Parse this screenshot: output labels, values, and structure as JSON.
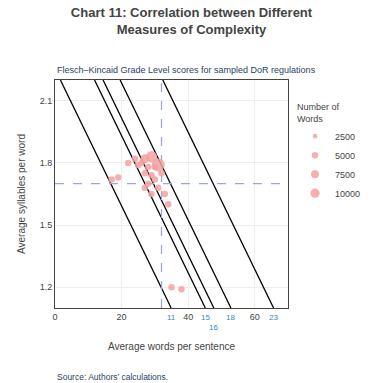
{
  "chart_data": {
    "type": "scatter",
    "title": "Chart 11: Correlation between Different\nMeasures of Complexity",
    "subtitle": "Flesch–Kincaid Grade Level scores for sampled DoR regulations",
    "source": "Source: Authors’ calculations.",
    "xlabel": "Average words per sentence",
    "ylabel": "Average syllables per word",
    "xlim": [
      0,
      70
    ],
    "ylim": [
      1.1,
      2.2
    ],
    "xticks": [
      0,
      20,
      40,
      60
    ],
    "yticks": [
      1.2,
      1.5,
      1.8,
      2.1
    ],
    "grid": true,
    "legend": "right",
    "series": [
      {
        "type": "scatter",
        "color": "#f4a0a0",
        "x": [
          17,
          19,
          22,
          24,
          25,
          26,
          27,
          27,
          27,
          28,
          28,
          29,
          29,
          29,
          30,
          30,
          31,
          31,
          32,
          33,
          34,
          35,
          38
        ],
        "values": [
          1.72,
          1.73,
          1.8,
          1.82,
          1.79,
          1.8,
          1.82,
          1.75,
          1.68,
          1.78,
          1.7,
          1.83,
          1.74,
          1.65,
          1.78,
          1.72,
          1.79,
          1.68,
          1.75,
          1.65,
          1.6,
          1.2,
          1.19
        ],
        "sizes": [
          2500,
          2500,
          2500,
          2500,
          2500,
          2500,
          5000,
          2500,
          2500,
          2500,
          2500,
          7500,
          2500,
          2500,
          2500,
          2500,
          10000,
          2500,
          2500,
          2500,
          2500,
          2500,
          2500
        ]
      },
      {
        "type": "line",
        "color": "black",
        "line_style": "solid",
        "x": [
          1.615384615,
          34.897435897
        ],
        "values": [
          2.2,
          1.1
        ]
      },
      {
        "type": "line",
        "color": "black",
        "line_style": "solid",
        "x": [
          11.871794872,
          45.153846154
        ],
        "values": [
          2.2,
          1.1
        ]
      },
      {
        "type": "line",
        "color": "black",
        "line_style": "solid",
        "x": [
          14.435897436,
          47.717948718
        ],
        "values": [
          2.2,
          1.1
        ]
      },
      {
        "type": "line",
        "color": "black",
        "line_style": "solid",
        "x": [
          19.564102564,
          52.846153846
        ],
        "values": [
          2.2,
          1.1
        ]
      },
      {
        "type": "line",
        "color": "black",
        "line_style": "solid",
        "x": [
          32.384615385,
          65.666666667
        ],
        "values": [
          2.2,
          1.1
        ]
      },
      {
        "type": "line",
        "color": "#99aacc",
        "line_style": "dashed",
        "x": [
          32,
          32
        ],
        "values": [
          1.1,
          2.2
        ]
      },
      {
        "type": "line",
        "color": "#99aacc",
        "line_style": "dashed",
        "x": [
          0,
          70
        ],
        "values": [
          1.7,
          1.7
        ]
      }
    ],
    "size_legend": {
      "title": "Number of\nWords",
      "sizes": [
        2500,
        5000,
        7500,
        10000
      ]
    },
    "annotations": [
      {
        "text": "11",
        "x": 34.897435897,
        "y": 1.1,
        "color": "#3388bb"
      },
      {
        "text": "15",
        "x": 45.153846154,
        "y": 1.1,
        "color": "#3388bb"
      },
      {
        "text": "16",
        "x": 47.717948718,
        "y": 1.1,
        "color": "#3388bb"
      },
      {
        "text": "18",
        "x": 52.846153846,
        "y": 1.1,
        "color": "#3388bb"
      },
      {
        "text": "23",
        "x": 65.666666667,
        "y": 1.1,
        "color": "#3388bb"
      }
    ]
  }
}
